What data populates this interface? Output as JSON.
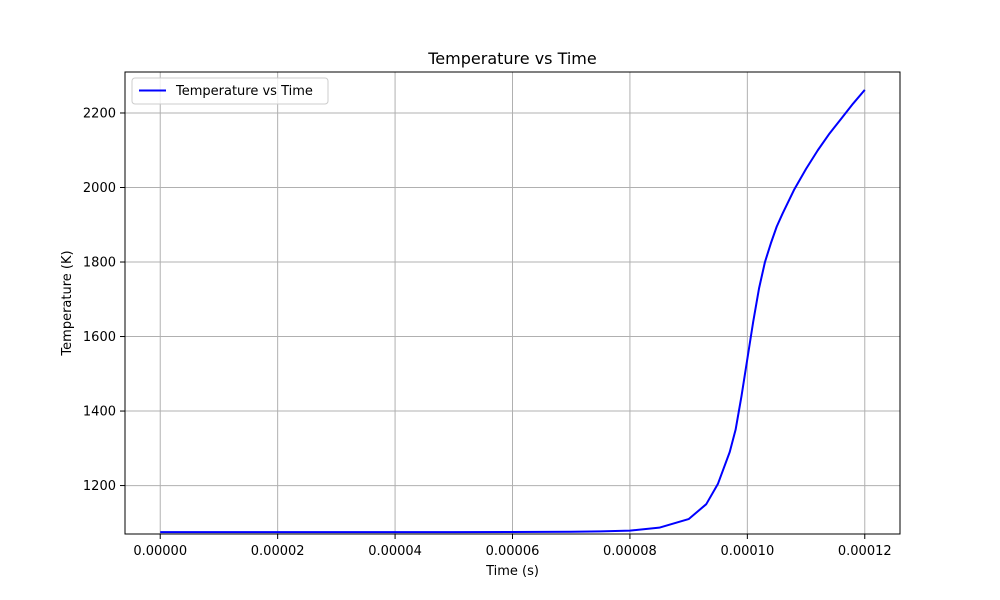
{
  "chart_data": {
    "type": "line",
    "title": "Temperature vs Time",
    "xlabel": "Time (s)",
    "ylabel": "Temperature (K)",
    "xlim": [
      -6e-06,
      0.000126
    ],
    "ylim": [
      1070,
      2310
    ],
    "xticks": [
      0,
      2e-05,
      4e-05,
      6e-05,
      8e-05,
      0.0001,
      0.00012
    ],
    "xtick_labels": [
      "0.00000",
      "0.00002",
      "0.00004",
      "0.00006",
      "0.00008",
      "0.00010",
      "0.00012"
    ],
    "yticks": [
      1200,
      1400,
      1600,
      1800,
      2000,
      2200
    ],
    "ytick_labels": [
      "1200",
      "1400",
      "1600",
      "1800",
      "2000",
      "2200"
    ],
    "grid": true,
    "legend_position": "top-left",
    "series": [
      {
        "name": "Temperature vs Time",
        "color": "#0000ff",
        "x": [
          0,
          1e-05,
          2e-05,
          3e-05,
          4e-05,
          5e-05,
          6e-05,
          7e-05,
          7.5e-05,
          8e-05,
          8.5e-05,
          9e-05,
          9.3e-05,
          9.5e-05,
          9.7e-05,
          9.8e-05,
          9.9e-05,
          0.0001,
          0.000101,
          0.000102,
          0.000103,
          0.000104,
          0.000105,
          0.000106,
          0.000108,
          0.00011,
          0.000112,
          0.000114,
          0.000116,
          0.000118,
          0.00012
        ],
        "y": [
          1075,
          1075,
          1075,
          1075,
          1075,
          1075,
          1075.5,
          1076,
          1077,
          1079,
          1087,
          1110,
          1150,
          1205,
          1290,
          1350,
          1440,
          1540,
          1640,
          1730,
          1800,
          1850,
          1895,
          1930,
          1995,
          2050,
          2100,
          2145,
          2185,
          2225,
          2262
        ]
      }
    ]
  }
}
